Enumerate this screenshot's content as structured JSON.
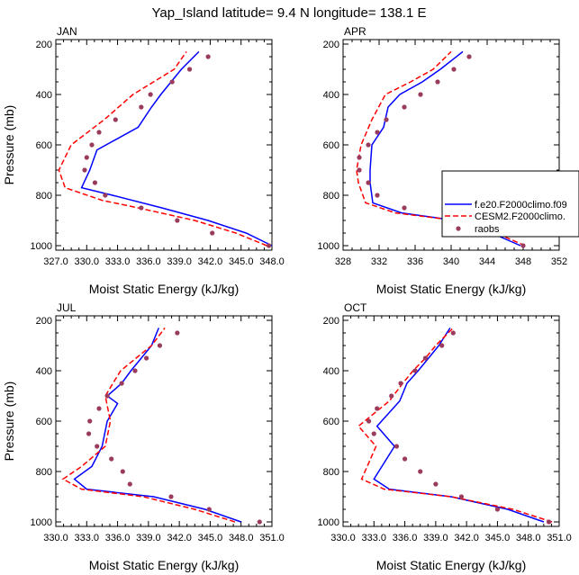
{
  "title": "Yap_Island  latitude= 9.4 N longitude= 138.1 E",
  "colors": {
    "model1": "#0000ff",
    "model2": "#ff0000",
    "obs": "#9a3b5c",
    "axis": "#000000"
  },
  "legend": {
    "items": [
      {
        "label": "f.e20.F2000climo.f09",
        "style": "solid",
        "color": "#0000ff"
      },
      {
        "label": "CESM2.F2000climo.",
        "style": "dashed",
        "color": "#ff0000"
      },
      {
        "label": "raobs",
        "style": "dot",
        "color": "#9a3b5c"
      }
    ]
  },
  "chart_data": [
    {
      "type": "line",
      "panel": "JAN",
      "xlabel": "Moist Static Energy (kJ/kg)",
      "ylabel": "Pressure (mb)",
      "xlim": [
        327.0,
        348.0
      ],
      "ylim": [
        1000,
        200
      ],
      "xticks": [
        "327.0",
        "330.0",
        "333.0",
        "336.0",
        "339.0",
        "342.0",
        "345.0",
        "348.0"
      ],
      "yticks": [
        "200",
        "400",
        "600",
        "800",
        "1000"
      ],
      "series": [
        {
          "name": "f.e20.F2000climo.f09",
          "p": [
            1000,
            950,
            900,
            850,
            800,
            770,
            700,
            620,
            530,
            450,
            400,
            350,
            300,
            230
          ],
          "mse": [
            348.0,
            345.5,
            341.8,
            337.3,
            332.5,
            329.5,
            330.3,
            331.0,
            335.0,
            336.3,
            337.2,
            338.2,
            339.2,
            340.9
          ]
        },
        {
          "name": "CESM2.F2000climo.",
          "p": [
            1000,
            950,
            900,
            850,
            820,
            770,
            700,
            600,
            500,
            400,
            350,
            300,
            230
          ],
          "mse": [
            347.5,
            344.5,
            340.5,
            335.0,
            331.5,
            327.9,
            327.3,
            328.5,
            331.7,
            334.5,
            336.5,
            338.5,
            339.7
          ]
        },
        {
          "name": "raobs",
          "p": [
            1000,
            950,
            900,
            850,
            800,
            750,
            700,
            650,
            600,
            550,
            500,
            450,
            400,
            350,
            300,
            250
          ],
          "mse": [
            347.7,
            342.2,
            338.8,
            335.3,
            331.8,
            330.8,
            329.8,
            330.0,
            330.5,
            331.2,
            332.8,
            335.3,
            336.2,
            338.3,
            340.0,
            341.8
          ],
          "markers": true
        }
      ]
    },
    {
      "type": "line",
      "panel": "APR",
      "xlabel": "Moist Static Energy (kJ/kg)",
      "ylabel": "",
      "xlim": [
        328,
        352
      ],
      "ylim": [
        1000,
        200
      ],
      "xticks": [
        "328",
        "332",
        "336",
        "340",
        "344",
        "348",
        "352"
      ],
      "yticks": [
        "200",
        "400",
        "600",
        "800",
        "1000"
      ],
      "series": [
        {
          "name": "f.e20.F2000climo.f09",
          "p": [
            1000,
            950,
            900,
            870,
            830,
            750,
            700,
            600,
            530,
            450,
            400,
            350,
            300,
            230
          ],
          "mse": [
            347.7,
            344.5,
            340.5,
            334.5,
            331.3,
            331.0,
            331.0,
            331.2,
            332.5,
            333.0,
            334.3,
            336.8,
            338.8,
            341.3
          ]
        },
        {
          "name": "CESM2.F2000climo.",
          "p": [
            1000,
            950,
            900,
            870,
            830,
            750,
            700,
            600,
            500,
            400,
            350,
            300,
            230
          ],
          "mse": [
            348.2,
            345.0,
            340.5,
            333.8,
            330.5,
            329.7,
            329.5,
            330.0,
            331.2,
            332.7,
            335.5,
            338.0,
            340.0
          ]
        },
        {
          "name": "raobs",
          "p": [
            1000,
            950,
            900,
            850,
            800,
            750,
            700,
            650,
            600,
            550,
            500,
            450,
            400,
            350,
            300,
            250
          ],
          "mse": [
            348.0,
            343.8,
            339.3,
            334.8,
            331.8,
            330.8,
            329.8,
            329.8,
            330.8,
            331.8,
            332.8,
            334.8,
            336.6,
            338.5,
            340.3,
            342.0
          ],
          "markers": true
        }
      ]
    },
    {
      "type": "line",
      "panel": "JUL",
      "xlabel": "Moist Static Energy (kJ/kg)",
      "ylabel": "Pressure (mb)",
      "xlim": [
        330.0,
        351.0
      ],
      "ylim": [
        1000,
        200
      ],
      "xticks": [
        "330.0",
        "333.0",
        "336.0",
        "339.0",
        "342.0",
        "345.0",
        "348.0",
        "351.0"
      ],
      "yticks": [
        "200",
        "400",
        "600",
        "800",
        "1000"
      ],
      "series": [
        {
          "name": "f.e20.F2000climo.f09",
          "p": [
            1000,
            950,
            900,
            870,
            830,
            780,
            700,
            600,
            530,
            500,
            450,
            400,
            350,
            300,
            230
          ],
          "mse": [
            348.0,
            344.5,
            339.5,
            333.0,
            331.8,
            333.5,
            334.5,
            335.0,
            336.0,
            335.0,
            336.4,
            337.3,
            338.3,
            339.3,
            340.0
          ]
        },
        {
          "name": "CESM2.F2000climo.",
          "p": [
            1000,
            950,
            900,
            870,
            830,
            780,
            700,
            600,
            500,
            400,
            350,
            300,
            230
          ],
          "mse": [
            347.4,
            343.5,
            338.5,
            332.5,
            330.7,
            332.5,
            334.8,
            335.3,
            334.8,
            336.3,
            337.8,
            339.3,
            340.6
          ]
        },
        {
          "name": "raobs",
          "p": [
            1000,
            950,
            900,
            850,
            800,
            750,
            700,
            650,
            600,
            550,
            500,
            450,
            400,
            350,
            300,
            250
          ],
          "mse": [
            349.8,
            344.9,
            341.2,
            337.2,
            336.5,
            335.4,
            334.0,
            333.2,
            333.3,
            334.2,
            335.0,
            336.4,
            337.7,
            338.8,
            340.1,
            341.8
          ],
          "markers": true
        }
      ]
    },
    {
      "type": "line",
      "panel": "OCT",
      "xlabel": "Moist Static Energy (kJ/kg)",
      "ylabel": "",
      "xlim": [
        330.0,
        351.0
      ],
      "ylim": [
        1000,
        200
      ],
      "xticks": [
        "330.0",
        "333.0",
        "336.0",
        "339.0",
        "342.0",
        "345.0",
        "348.0",
        "351.0"
      ],
      "yticks": [
        "200",
        "400",
        "600",
        "800",
        "1000"
      ],
      "series": [
        {
          "name": "f.e20.F2000climo.f09",
          "p": [
            1000,
            950,
            900,
            870,
            830,
            700,
            620,
            520,
            450,
            400,
            350,
            300,
            230
          ],
          "mse": [
            349.5,
            346.0,
            340.5,
            334.5,
            333.0,
            335.0,
            333.3,
            335.5,
            336.2,
            337.3,
            338.3,
            339.3,
            340.4
          ]
        },
        {
          "name": "CESM2.F2000climo.",
          "p": [
            1000,
            950,
            900,
            870,
            830,
            700,
            620,
            520,
            450,
            400,
            350,
            300,
            230
          ],
          "mse": [
            350.3,
            346.5,
            340.5,
            334.0,
            331.8,
            333.2,
            331.5,
            334.5,
            335.8,
            336.8,
            338.0,
            339.0,
            340.7
          ]
        },
        {
          "name": "raobs",
          "p": [
            1000,
            950,
            900,
            850,
            800,
            750,
            700,
            650,
            600,
            550,
            500,
            450,
            400,
            350,
            300,
            250
          ],
          "mse": [
            350.0,
            345.0,
            341.5,
            339.0,
            337.5,
            336.0,
            335.2,
            333.0,
            332.5,
            333.3,
            334.7,
            335.6,
            337.0,
            338.0,
            339.6,
            340.7
          ],
          "markers": true
        }
      ]
    }
  ]
}
